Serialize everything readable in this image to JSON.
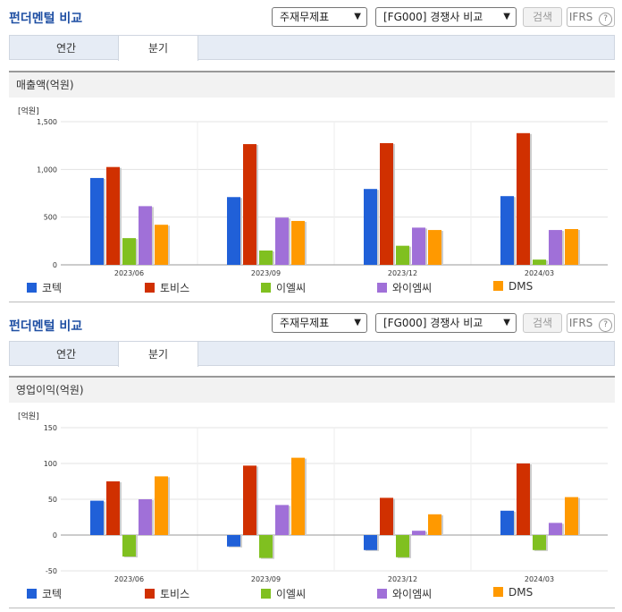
{
  "sections": [
    {
      "title": "펀더멘털 비교",
      "select1": "주재무제표",
      "select2": "[FG000] 경쟁사 비교",
      "search_button": "검색",
      "ifrs_label": "IFRS",
      "tabs": [
        "연간",
        "분기"
      ],
      "active_tab": 1,
      "panel_title": "매출액(억원)",
      "unit": "[억원]"
    },
    {
      "title": "펀더멘털 비교",
      "select1": "주재무제표",
      "select2": "[FG000] 경쟁사 비교",
      "search_button": "검색",
      "ifrs_label": "IFRS",
      "tabs": [
        "연간",
        "분기"
      ],
      "active_tab": 1,
      "panel_title": "영업이익(억원)",
      "unit": "[억원]"
    }
  ],
  "colors": {
    "코텍": "#2060d8",
    "토비스": "#d03000",
    "이엘씨": "#80c020",
    "와이엠씨": "#a070d8",
    "DMS": "#ff9900"
  },
  "chart_data": [
    {
      "type": "bar",
      "title": "매출액(억원)",
      "ylabel": "[억원]",
      "categories": [
        "2023/06",
        "2023/09",
        "2023/12",
        "2024/03"
      ],
      "yticks": [
        "1,500",
        "1,000",
        "500",
        "0"
      ],
      "ylim": [
        0,
        1500
      ],
      "series": [
        {
          "name": "코텍",
          "values": [
            910,
            710,
            795,
            720
          ]
        },
        {
          "name": "토비스",
          "values": [
            1025,
            1265,
            1275,
            1380
          ]
        },
        {
          "name": "이엘씨",
          "values": [
            280,
            150,
            200,
            55
          ]
        },
        {
          "name": "와이엠씨",
          "values": [
            615,
            495,
            390,
            365
          ]
        },
        {
          "name": "DMS",
          "values": [
            420,
            460,
            365,
            375
          ]
        }
      ]
    },
    {
      "type": "bar",
      "title": "영업이익(억원)",
      "ylabel": "[억원]",
      "categories": [
        "2023/06",
        "2023/09",
        "2023/12",
        "2024/03"
      ],
      "yticks": [
        "150",
        "100",
        "50",
        "0",
        "-50"
      ],
      "ylim": [
        -50,
        150
      ],
      "series": [
        {
          "name": "코텍",
          "values": [
            48,
            -16,
            -21,
            34
          ]
        },
        {
          "name": "토비스",
          "values": [
            75,
            97,
            52,
            100
          ]
        },
        {
          "name": "이엘씨",
          "values": [
            -30,
            -32,
            -31,
            -21
          ]
        },
        {
          "name": "와이엠씨",
          "values": [
            50,
            42,
            6,
            17
          ]
        },
        {
          "name": "DMS",
          "values": [
            82,
            108,
            29,
            53
          ]
        }
      ]
    }
  ]
}
